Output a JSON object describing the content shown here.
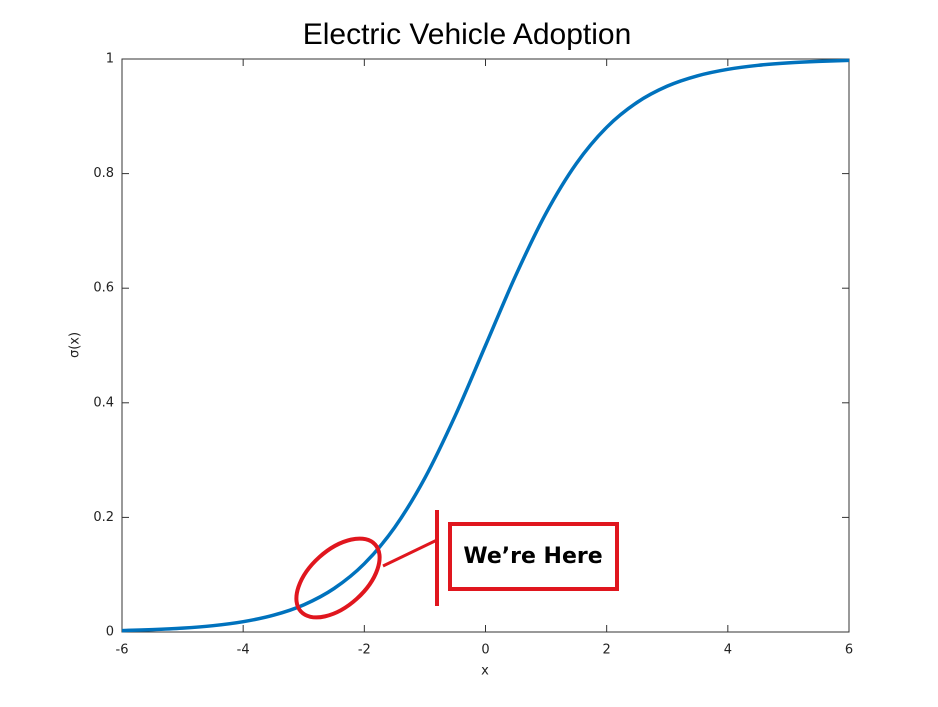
{
  "chart_data": {
    "type": "line",
    "title": "Electric Vehicle Adoption",
    "x_label": "x",
    "y_label": "σ(x)",
    "x": [
      -6,
      -5.5,
      -5,
      -4.5,
      -4,
      -3.5,
      -3,
      -2.5,
      -2,
      -1.5,
      -1,
      -0.5,
      0,
      0.5,
      1,
      1.5,
      2,
      2.5,
      3,
      3.5,
      4,
      4.5,
      5,
      5.5,
      6
    ],
    "series": [
      {
        "color": "#0072bd",
        "values": [
          0.0025,
          0.0041,
          0.0067,
          0.011,
          0.018,
          0.0293,
          0.0474,
          0.0759,
          0.1192,
          0.1824,
          0.2689,
          0.3775,
          0.5,
          0.6225,
          0.7311,
          0.8176,
          0.8808,
          0.9241,
          0.9526,
          0.9707,
          0.982,
          0.989,
          0.9933,
          0.9959,
          0.9975
        ]
      }
    ],
    "xlim": [
      -6,
      6
    ],
    "xticks": [
      -6,
      -4,
      -2,
      0,
      2,
      4,
      6
    ],
    "ylim": [
      0,
      1
    ],
    "yticks": [
      0,
      0.2,
      0.4,
      0.6,
      0.8,
      1
    ],
    "annotation": "We’re Here",
    "annotation_color": "#e0161e"
  }
}
